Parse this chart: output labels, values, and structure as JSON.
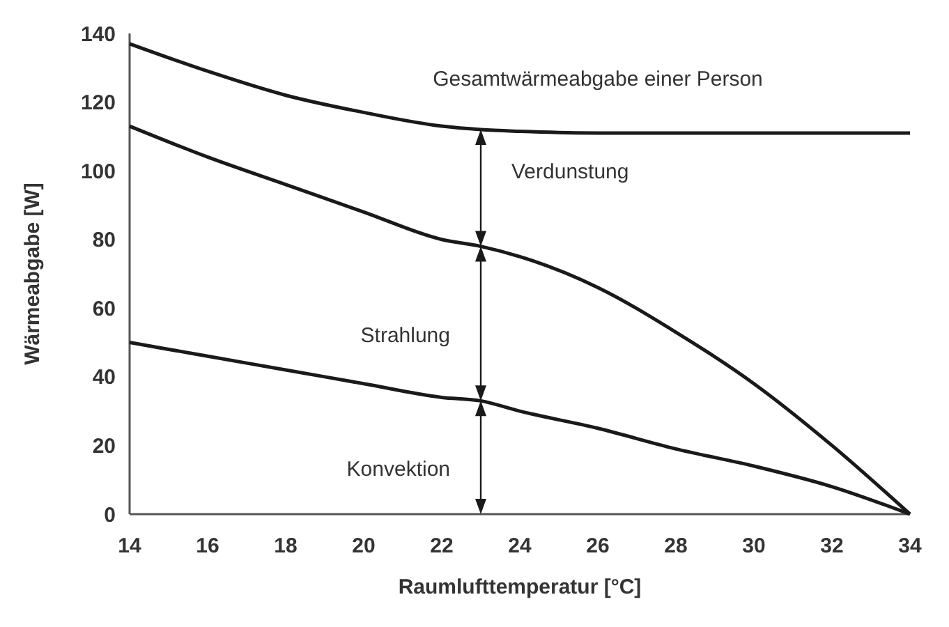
{
  "chart_data": {
    "type": "line",
    "xlabel": "Raumlufttemperatur [°C]",
    "ylabel": "Wärmeabgabe [W]",
    "x": [
      14,
      16,
      18,
      20,
      22,
      23,
      24,
      26,
      28,
      30,
      32,
      34
    ],
    "series": [
      {
        "name": "Gesamtwärmeabgabe einer Person",
        "color": "#1a1a1a",
        "values": [
          137,
          129,
          122,
          117,
          113,
          112,
          111.5,
          111,
          111,
          111,
          111,
          111
        ]
      },
      {
        "color": "#1a1a1a",
        "values": [
          113,
          104,
          96,
          88,
          80,
          78,
          75,
          66,
          53,
          38,
          20,
          0
        ]
      },
      {
        "color": "#1a1a1a",
        "values": [
          50,
          46,
          42,
          38,
          34,
          33,
          30,
          25,
          19,
          14,
          8,
          0
        ]
      }
    ],
    "xlim": [
      14,
      34
    ],
    "xticks": [
      14,
      16,
      18,
      20,
      22,
      24,
      26,
      28,
      30,
      32,
      34
    ],
    "ylim": [
      0,
      140
    ],
    "yticks": [
      0,
      20,
      40,
      60,
      80,
      100,
      120,
      140
    ],
    "grid": false,
    "marker": "none",
    "line_style": "solid",
    "annotations": [
      "Verdunstung",
      "Strahlung",
      "Konvektion"
    ]
  }
}
